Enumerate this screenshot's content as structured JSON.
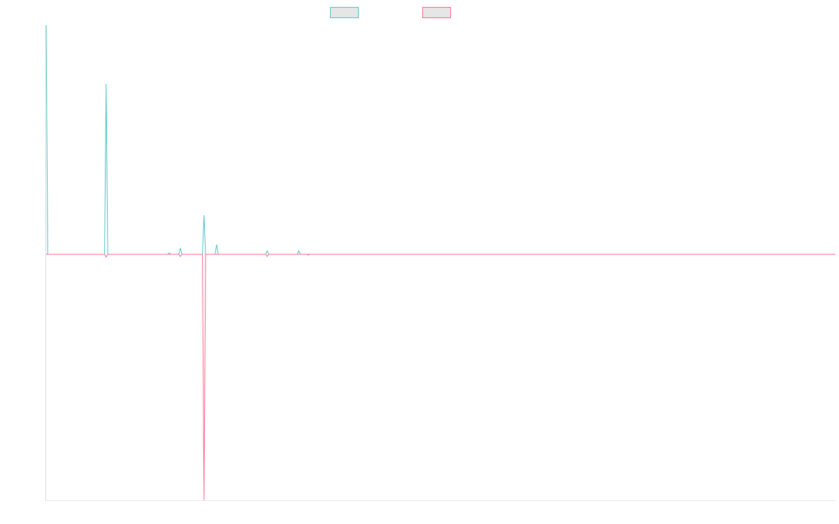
{
  "chart_data": {
    "type": "line",
    "x": [
      0,
      1,
      37,
      38,
      39,
      77,
      78,
      79,
      84,
      85,
      86,
      99,
      100,
      101,
      107,
      108,
      109,
      139,
      140,
      141,
      159,
      160,
      161,
      165,
      166,
      167,
      500
    ],
    "series": [
      {
        "color": "#4bc0c0",
        "values": [
          328,
          0,
          0,
          244,
          0,
          0,
          2,
          0,
          0,
          9,
          0,
          0,
          56,
          0,
          0,
          14,
          0,
          0,
          5,
          0,
          0,
          5,
          0,
          0,
          0,
          0,
          0
        ]
      },
      {
        "color": "#ff6384",
        "values": [
          0,
          0,
          0,
          -4,
          0,
          0,
          0,
          0,
          0,
          -3,
          0,
          0,
          -352,
          0,
          0,
          0,
          0,
          0,
          -3,
          0,
          0,
          0,
          0,
          0,
          -1,
          0,
          0
        ]
      }
    ],
    "xlim": [
      0,
      500
    ],
    "ylim": [
      -352,
      328
    ],
    "grid": false
  }
}
